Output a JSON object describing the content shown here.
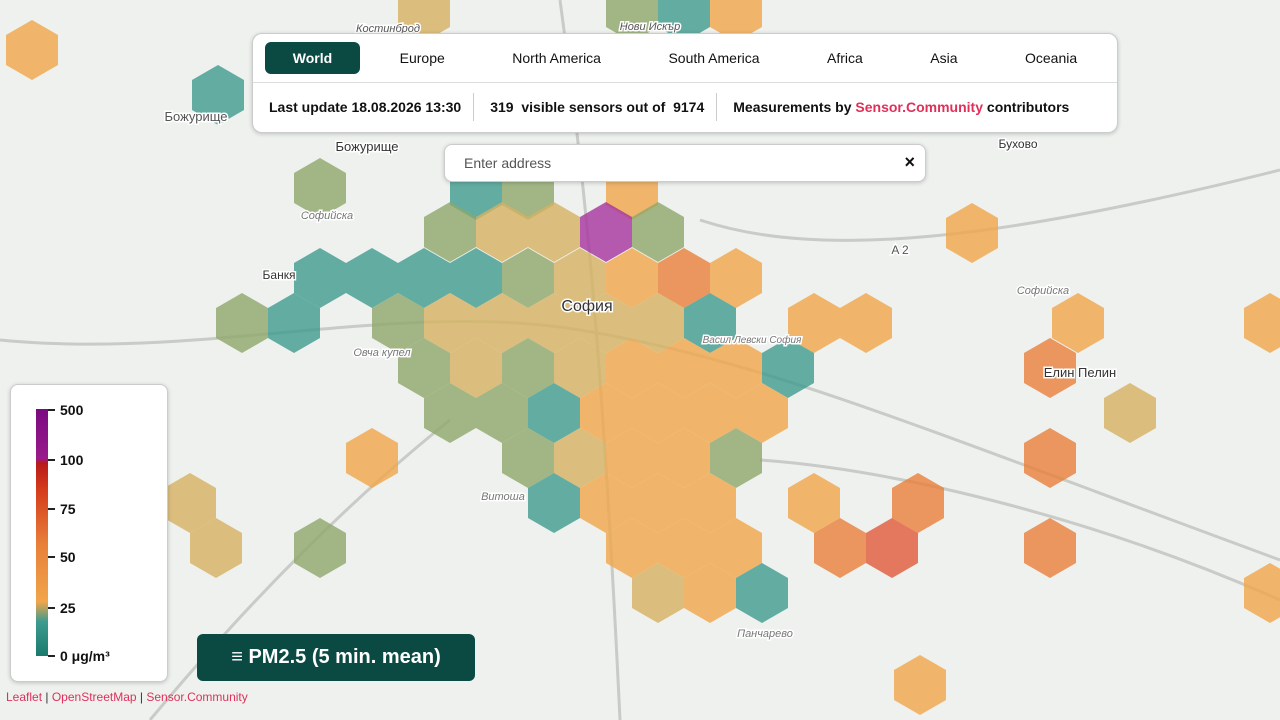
{
  "tabs": [
    "World",
    "Europe",
    "North America",
    "South America",
    "Africa",
    "Asia",
    "Oceania"
  ],
  "active_tab": "World",
  "status": {
    "last_update": "Last update 18.08.2026 13:30",
    "visible_count": "319",
    "visible_text": "visible sensors out of",
    "total_count": "9174",
    "measurements_prefix": "Measurements by",
    "measurements_link": "Sensor.Community",
    "measurements_suffix": "contributors"
  },
  "search": {
    "placeholder": "Enter address",
    "clear": "×"
  },
  "legend": {
    "ticks": [
      "500",
      "100",
      "75",
      "50",
      "25",
      "0 μg/m³"
    ]
  },
  "pollutant_button": "≡ PM2.5 (5 min. mean)",
  "attribution": {
    "leaflet": "Leaflet",
    "separator": "|",
    "osm": "OpenStreetMap",
    "community": "Sensor.Community"
  },
  "map_labels": [
    "Божурище",
    "Божурище",
    "София",
    "Банкя",
    "Бухово",
    "Елин Пелин",
    "Витоша",
    "Панчарево",
    "Овча купел",
    "Софийска",
    "Софийска",
    "Васил Левски София",
    "A 2",
    "Костинброд",
    "Нови Искър"
  ]
}
